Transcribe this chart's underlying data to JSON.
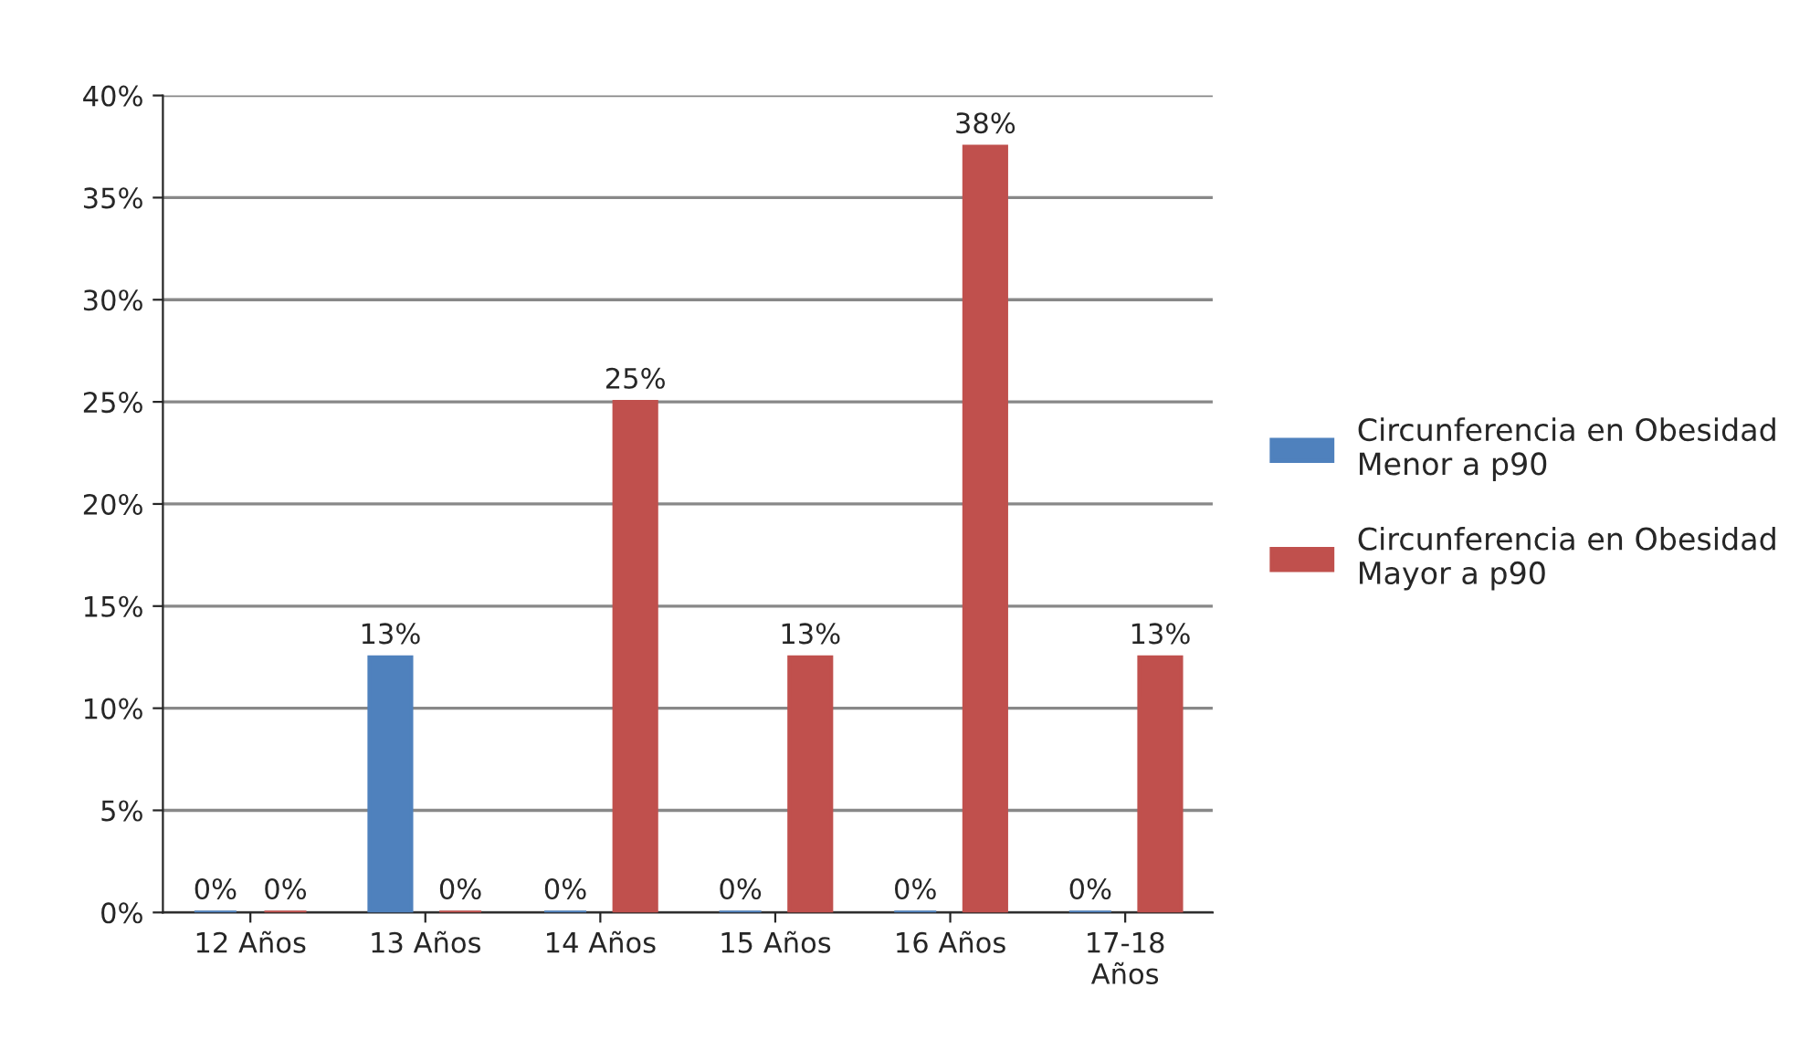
{
  "chart_data": {
    "type": "bar",
    "categories": [
      "12 Años",
      "13 Años",
      "14 Años",
      "15 Años",
      "16 Años",
      "17-18\nAños"
    ],
    "series": [
      {
        "name": "Circunferencia en Obesidad\nMenor a p90",
        "color": "#4f81bd",
        "values": [
          0,
          12.5,
          0,
          0,
          0,
          0
        ],
        "value_labels": [
          "0%",
          "13%",
          "0%",
          "0%",
          "0%",
          "0%"
        ]
      },
      {
        "name": "Circunferencia en Obesidad\nMayor a p90",
        "color": "#c0504d",
        "values": [
          0,
          0,
          25,
          12.5,
          37.5,
          12.5
        ],
        "value_labels": [
          "0%",
          "0%",
          "25%",
          "13%",
          "38%",
          "13%"
        ]
      }
    ],
    "ylim": [
      0,
      40
    ],
    "yticks": [
      {
        "value": 0,
        "label": "0%"
      },
      {
        "value": 5,
        "label": "5%"
      },
      {
        "value": 10,
        "label": "10%"
      },
      {
        "value": 15,
        "label": "15%"
      },
      {
        "value": 20,
        "label": "20%"
      },
      {
        "value": 25,
        "label": "25%"
      },
      {
        "value": 30,
        "label": "30%"
      },
      {
        "value": 35,
        "label": "35%"
      },
      {
        "value": 40,
        "label": "40%"
      }
    ],
    "grid": "y",
    "legend": "right"
  }
}
